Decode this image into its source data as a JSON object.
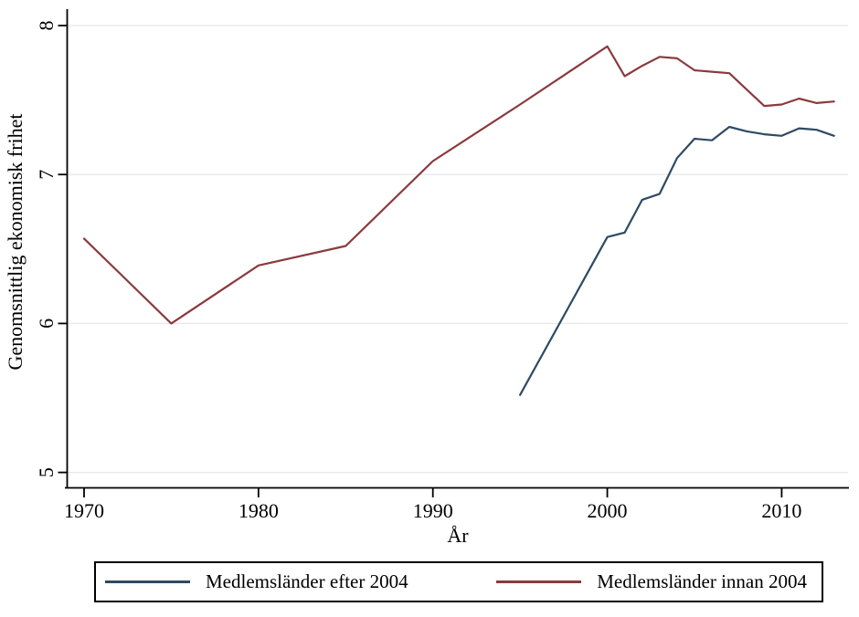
{
  "chart_data": {
    "type": "line",
    "title": "",
    "xlabel": "År",
    "ylabel": "Genomsnittlig ekonomisk frihet",
    "x_ticks": [
      1970,
      1980,
      1990,
      2000,
      2010
    ],
    "y_ticks": [
      5,
      6,
      7,
      8
    ],
    "xlim": [
      1969.1,
      2013.8
    ],
    "ylim": [
      4.89,
      8.11
    ],
    "grid": "horizontal-only",
    "gridline_color": "#e8e8e8",
    "axis_color": "#000000",
    "background_color": "#ffffff",
    "legend_position": "bottom-box",
    "series": [
      {
        "name": "Medlemsländer efter 2004",
        "color": "#2d4a63",
        "x": [
          1995,
          2000,
          2001,
          2002,
          2003,
          2004,
          2005,
          2006,
          2007,
          2008,
          2009,
          2010,
          2011,
          2012,
          2013
        ],
        "y": [
          5.52,
          6.58,
          6.61,
          6.83,
          6.87,
          7.11,
          7.24,
          7.23,
          7.32,
          7.29,
          7.27,
          7.26,
          7.31,
          7.3,
          7.26
        ]
      },
      {
        "name": "Medlemsländer innan 2004",
        "color": "#8a3a3e",
        "x": [
          1970,
          1975,
          1980,
          1985,
          1990,
          1995,
          2000,
          2001,
          2002,
          2003,
          2004,
          2005,
          2006,
          2007,
          2008,
          2009,
          2010,
          2011,
          2012,
          2013
        ],
        "y": [
          6.57,
          6.0,
          6.39,
          6.52,
          7.09,
          7.47,
          7.86,
          7.66,
          7.73,
          7.79,
          7.78,
          7.7,
          7.69,
          7.68,
          7.57,
          7.46,
          7.47,
          7.51,
          7.48,
          7.49
        ]
      }
    ]
  }
}
